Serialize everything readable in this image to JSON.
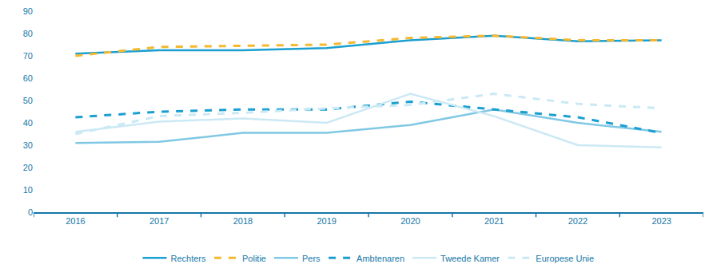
{
  "chart_data": {
    "type": "line",
    "categories": [
      "2016",
      "2017",
      "2018",
      "2019",
      "2020",
      "2021",
      "2022",
      "2023"
    ],
    "series": [
      {
        "name": "Rechters",
        "color": "#1a9fd0",
        "line_style": "solid",
        "values": [
          71,
          72.5,
          72.5,
          73.5,
          77,
          79,
          76.5,
          77
        ]
      },
      {
        "name": "Politie",
        "color": "#f5b82e",
        "line_style": "dashed",
        "values": [
          70,
          74,
          74.5,
          75,
          78,
          79,
          77,
          77
        ]
      },
      {
        "name": "Pers",
        "color": "#80c8e4",
        "line_style": "solid",
        "values": [
          31,
          31.5,
          35.5,
          35.5,
          39,
          46,
          40,
          36
        ]
      },
      {
        "name": "Ambtenaren",
        "color": "#1a9fd0",
        "line_style": "dashed",
        "values": [
          42.5,
          45,
          46,
          46,
          49.5,
          46,
          42.5,
          35.5
        ]
      },
      {
        "name": "Tweede Kamer",
        "color": "#cbe9f5",
        "line_style": "solid",
        "values": [
          36,
          40.5,
          42,
          40,
          53,
          43,
          30,
          29
        ]
      },
      {
        "name": "Europese Unie",
        "color": "#cbe9f5",
        "line_style": "dashed",
        "values": [
          35,
          43,
          44.5,
          46.5,
          48,
          53,
          48.5,
          46.5
        ]
      }
    ],
    "ylim": [
      0,
      90
    ],
    "yticks": [
      0,
      10,
      20,
      30,
      40,
      50,
      60,
      70,
      80,
      90
    ],
    "grid": false,
    "legend": "bottom"
  }
}
